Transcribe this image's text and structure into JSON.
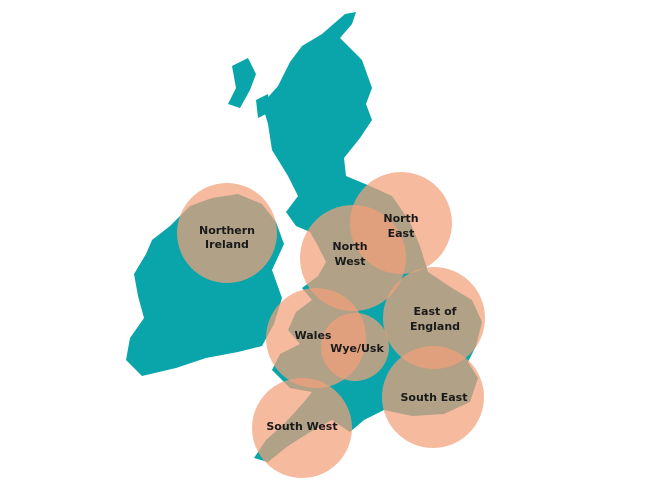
{
  "map": {
    "colors": {
      "land": "#0aa5aa",
      "region_circle": "#f3a07a",
      "label": "#1a1a1a"
    },
    "regions": [
      {
        "id": "northern-ireland",
        "lines": [
          "Northern",
          "Ireland"
        ]
      },
      {
        "id": "north-west",
        "lines": [
          "North",
          "West"
        ]
      },
      {
        "id": "north-east",
        "lines": [
          "North",
          "East"
        ]
      },
      {
        "id": "east-of-england",
        "lines": [
          "East of",
          "England"
        ]
      },
      {
        "id": "wales",
        "lines": [
          "Wales"
        ]
      },
      {
        "id": "wye-usk",
        "lines": [
          "Wye/Usk"
        ]
      },
      {
        "id": "south-east",
        "lines": [
          "South East"
        ]
      },
      {
        "id": "south-west",
        "lines": [
          "South West"
        ]
      }
    ]
  }
}
